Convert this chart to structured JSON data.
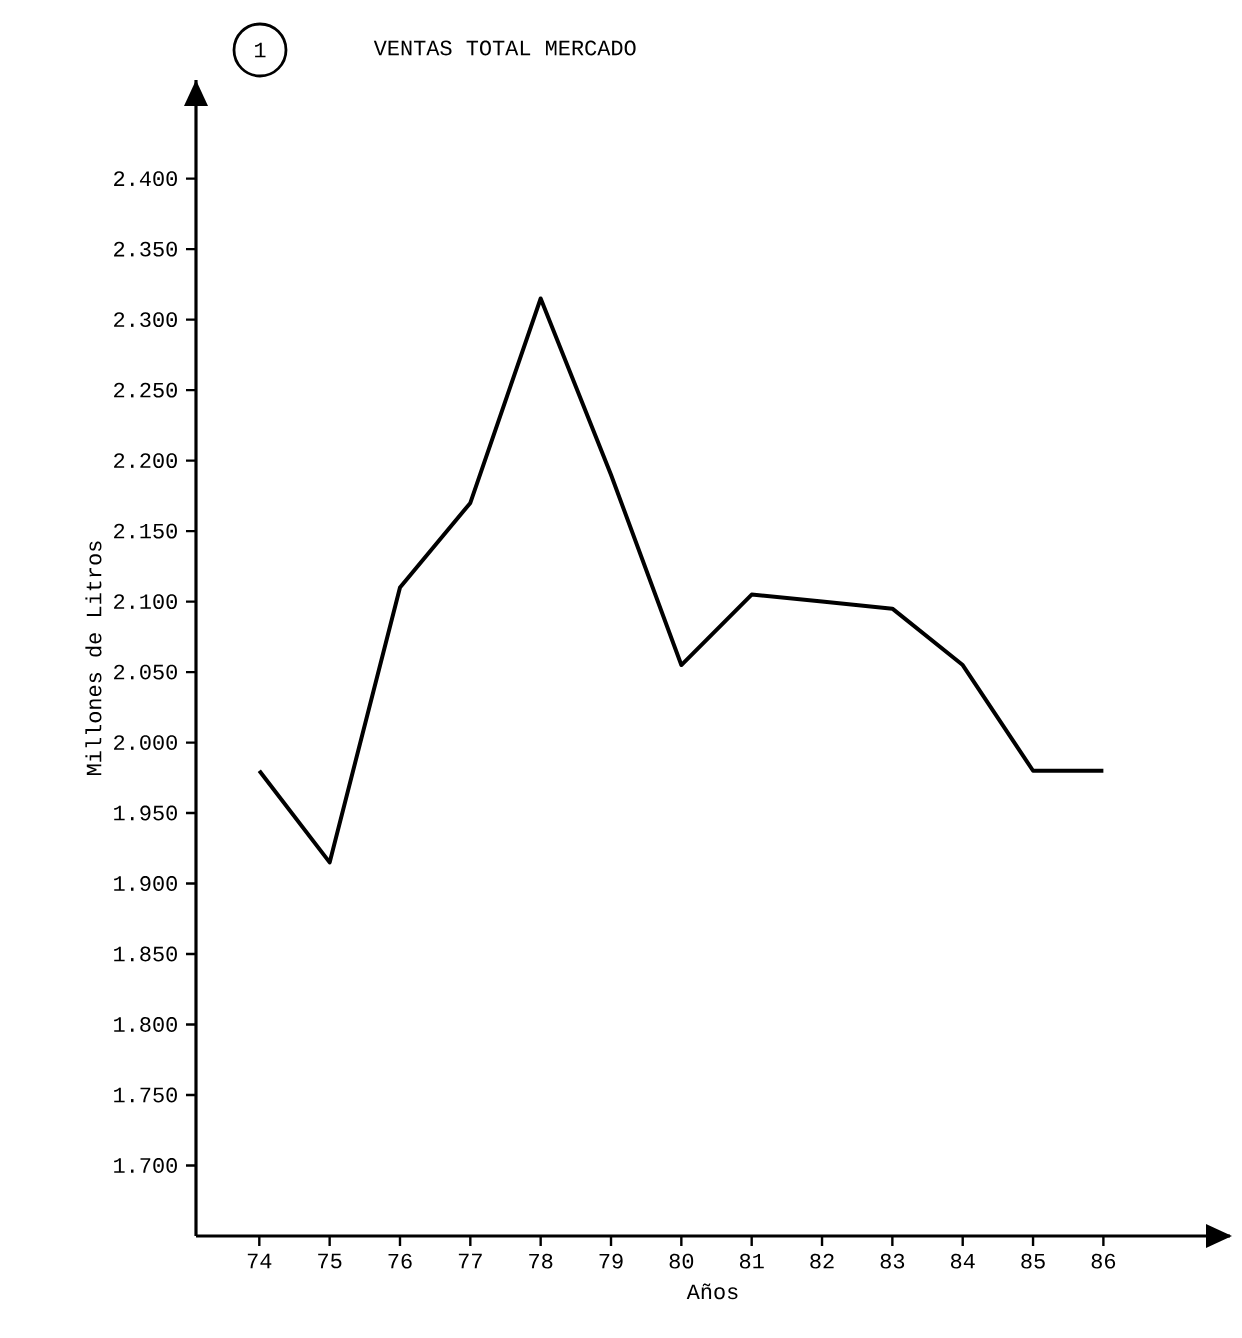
{
  "chart_data": {
    "type": "line",
    "title": "VENTAS TOTAL MERCADO",
    "annotations": [
      "1"
    ],
    "xlabel": "Años",
    "ylabel": "Millones de Litros",
    "categories": [
      "74",
      "75",
      "76",
      "77",
      "78",
      "79",
      "80",
      "81",
      "82",
      "83",
      "84",
      "85",
      "86"
    ],
    "series": [
      {
        "color": "#000000",
        "values": [
          1980,
          1915,
          2110,
          2170,
          2315,
          2190,
          2055,
          2105,
          2100,
          2095,
          2055,
          1980,
          1980
        ]
      }
    ],
    "ylim": [
      1650,
      2470
    ],
    "yticks": [
      {
        "value": 1700,
        "label": "1.700"
      },
      {
        "value": 1750,
        "label": "1.750"
      },
      {
        "value": 1800,
        "label": "1.800"
      },
      {
        "value": 1850,
        "label": "1.850"
      },
      {
        "value": 1900,
        "label": "1.900"
      },
      {
        "value": 1950,
        "label": "1.950"
      },
      {
        "value": 2000,
        "label": "2.000"
      },
      {
        "value": 2050,
        "label": "2.050"
      },
      {
        "value": 2100,
        "label": "2.100"
      },
      {
        "value": 2150,
        "label": "2.150"
      },
      {
        "value": 2200,
        "label": "2.200"
      },
      {
        "value": 2250,
        "label": "2.250"
      },
      {
        "value": 2300,
        "label": "2.300"
      },
      {
        "value": 2350,
        "label": "2.350"
      },
      {
        "value": 2400,
        "label": "2.400"
      }
    ],
    "marker": "none",
    "line_style": "solid"
  }
}
